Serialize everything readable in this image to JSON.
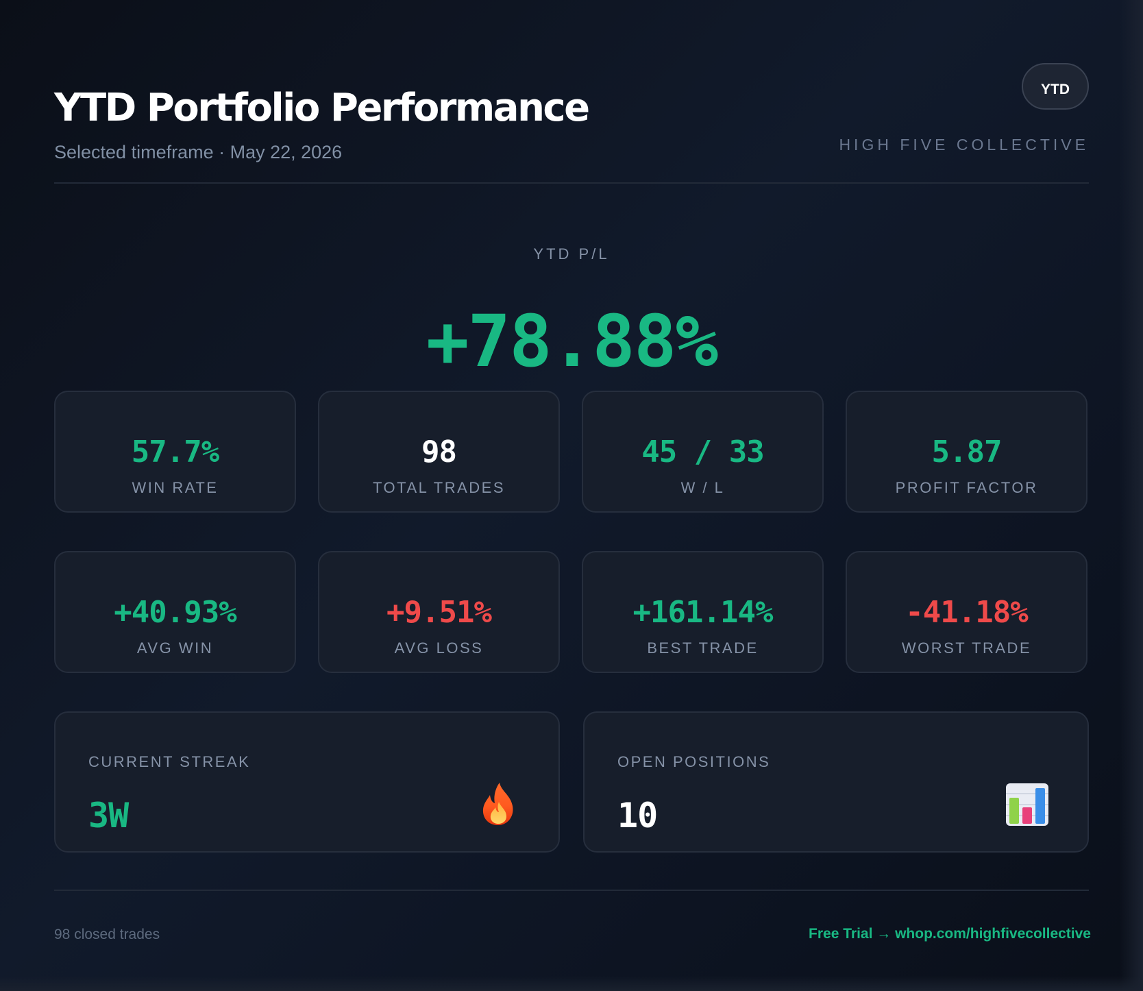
{
  "header": {
    "title": "YTD Portfolio Performance",
    "subtitle": "Selected timeframe · May 22, 2026",
    "timeframe_badge": "YTD",
    "brand": "HIGH FIVE COLLECTIVE"
  },
  "hero": {
    "label": "YTD P/L",
    "value": "+78.88%"
  },
  "stats_row1": [
    {
      "value": "57.7%",
      "label": "WIN RATE"
    },
    {
      "value": "98",
      "label": "TOTAL TRADES"
    },
    {
      "value": "45 / 33",
      "label": "W / L"
    },
    {
      "value": "5.87",
      "label": "PROFIT FACTOR"
    }
  ],
  "stats_row2": [
    {
      "value": "+40.93%",
      "label": "AVG WIN"
    },
    {
      "value": "+9.51%",
      "label": "AVG LOSS"
    },
    {
      "value": "+161.14%",
      "label": "BEST TRADE"
    },
    {
      "value": "-41.18%",
      "label": "WORST TRADE"
    }
  ],
  "streak": {
    "label": "CURRENT STREAK",
    "value": "3W",
    "icon": "fire-icon"
  },
  "positions": {
    "label": "OPEN POSITIONS",
    "value": "10",
    "icon": "bar-chart-icon"
  },
  "footer": {
    "left": "98 closed trades",
    "right": "Free Trial → whop.com/highfivecollective"
  },
  "colors": {
    "positive": "#19b883",
    "negative": "#ef4a4a",
    "background": "#0b0f18",
    "card": "#171e2b"
  }
}
